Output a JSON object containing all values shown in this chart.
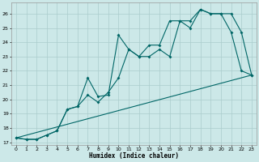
{
  "xlabel": "Humidex (Indice chaleur)",
  "background_color": "#cce8e8",
  "grid_color": "#aacccc",
  "line_color": "#006666",
  "xlim": [
    -0.5,
    23.5
  ],
  "ylim": [
    16.8,
    26.8
  ],
  "xticks": [
    0,
    1,
    2,
    3,
    4,
    5,
    6,
    7,
    8,
    9,
    10,
    11,
    12,
    13,
    14,
    15,
    16,
    17,
    18,
    19,
    20,
    21,
    22,
    23
  ],
  "yticks": [
    17,
    18,
    19,
    20,
    21,
    22,
    23,
    24,
    25,
    26
  ],
  "line1_x": [
    0,
    23
  ],
  "line1_y": [
    17.3,
    21.7
  ],
  "line2_x": [
    0,
    1,
    2,
    3,
    4,
    5,
    6,
    7,
    8,
    9,
    10,
    11,
    12,
    13,
    14,
    15,
    16,
    17,
    18,
    19,
    20,
    21,
    22,
    23
  ],
  "line2_y": [
    17.3,
    17.2,
    17.2,
    17.5,
    17.8,
    19.3,
    19.5,
    20.3,
    19.8,
    20.5,
    21.5,
    23.5,
    23.0,
    23.0,
    23.5,
    23.0,
    25.5,
    25.0,
    26.3,
    26.0,
    26.0,
    24.7,
    22.0,
    21.7
  ],
  "line3_x": [
    0,
    1,
    2,
    3,
    4,
    5,
    6,
    7,
    8,
    9,
    10,
    11,
    12,
    13,
    14,
    15,
    16,
    17,
    18,
    19,
    20,
    21,
    22,
    23
  ],
  "line3_y": [
    17.3,
    17.2,
    17.2,
    17.5,
    17.8,
    19.3,
    19.5,
    21.5,
    20.2,
    20.3,
    24.5,
    23.5,
    23.0,
    23.8,
    23.8,
    25.5,
    25.5,
    25.5,
    26.3,
    26.0,
    26.0,
    26.0,
    24.7,
    21.7
  ]
}
